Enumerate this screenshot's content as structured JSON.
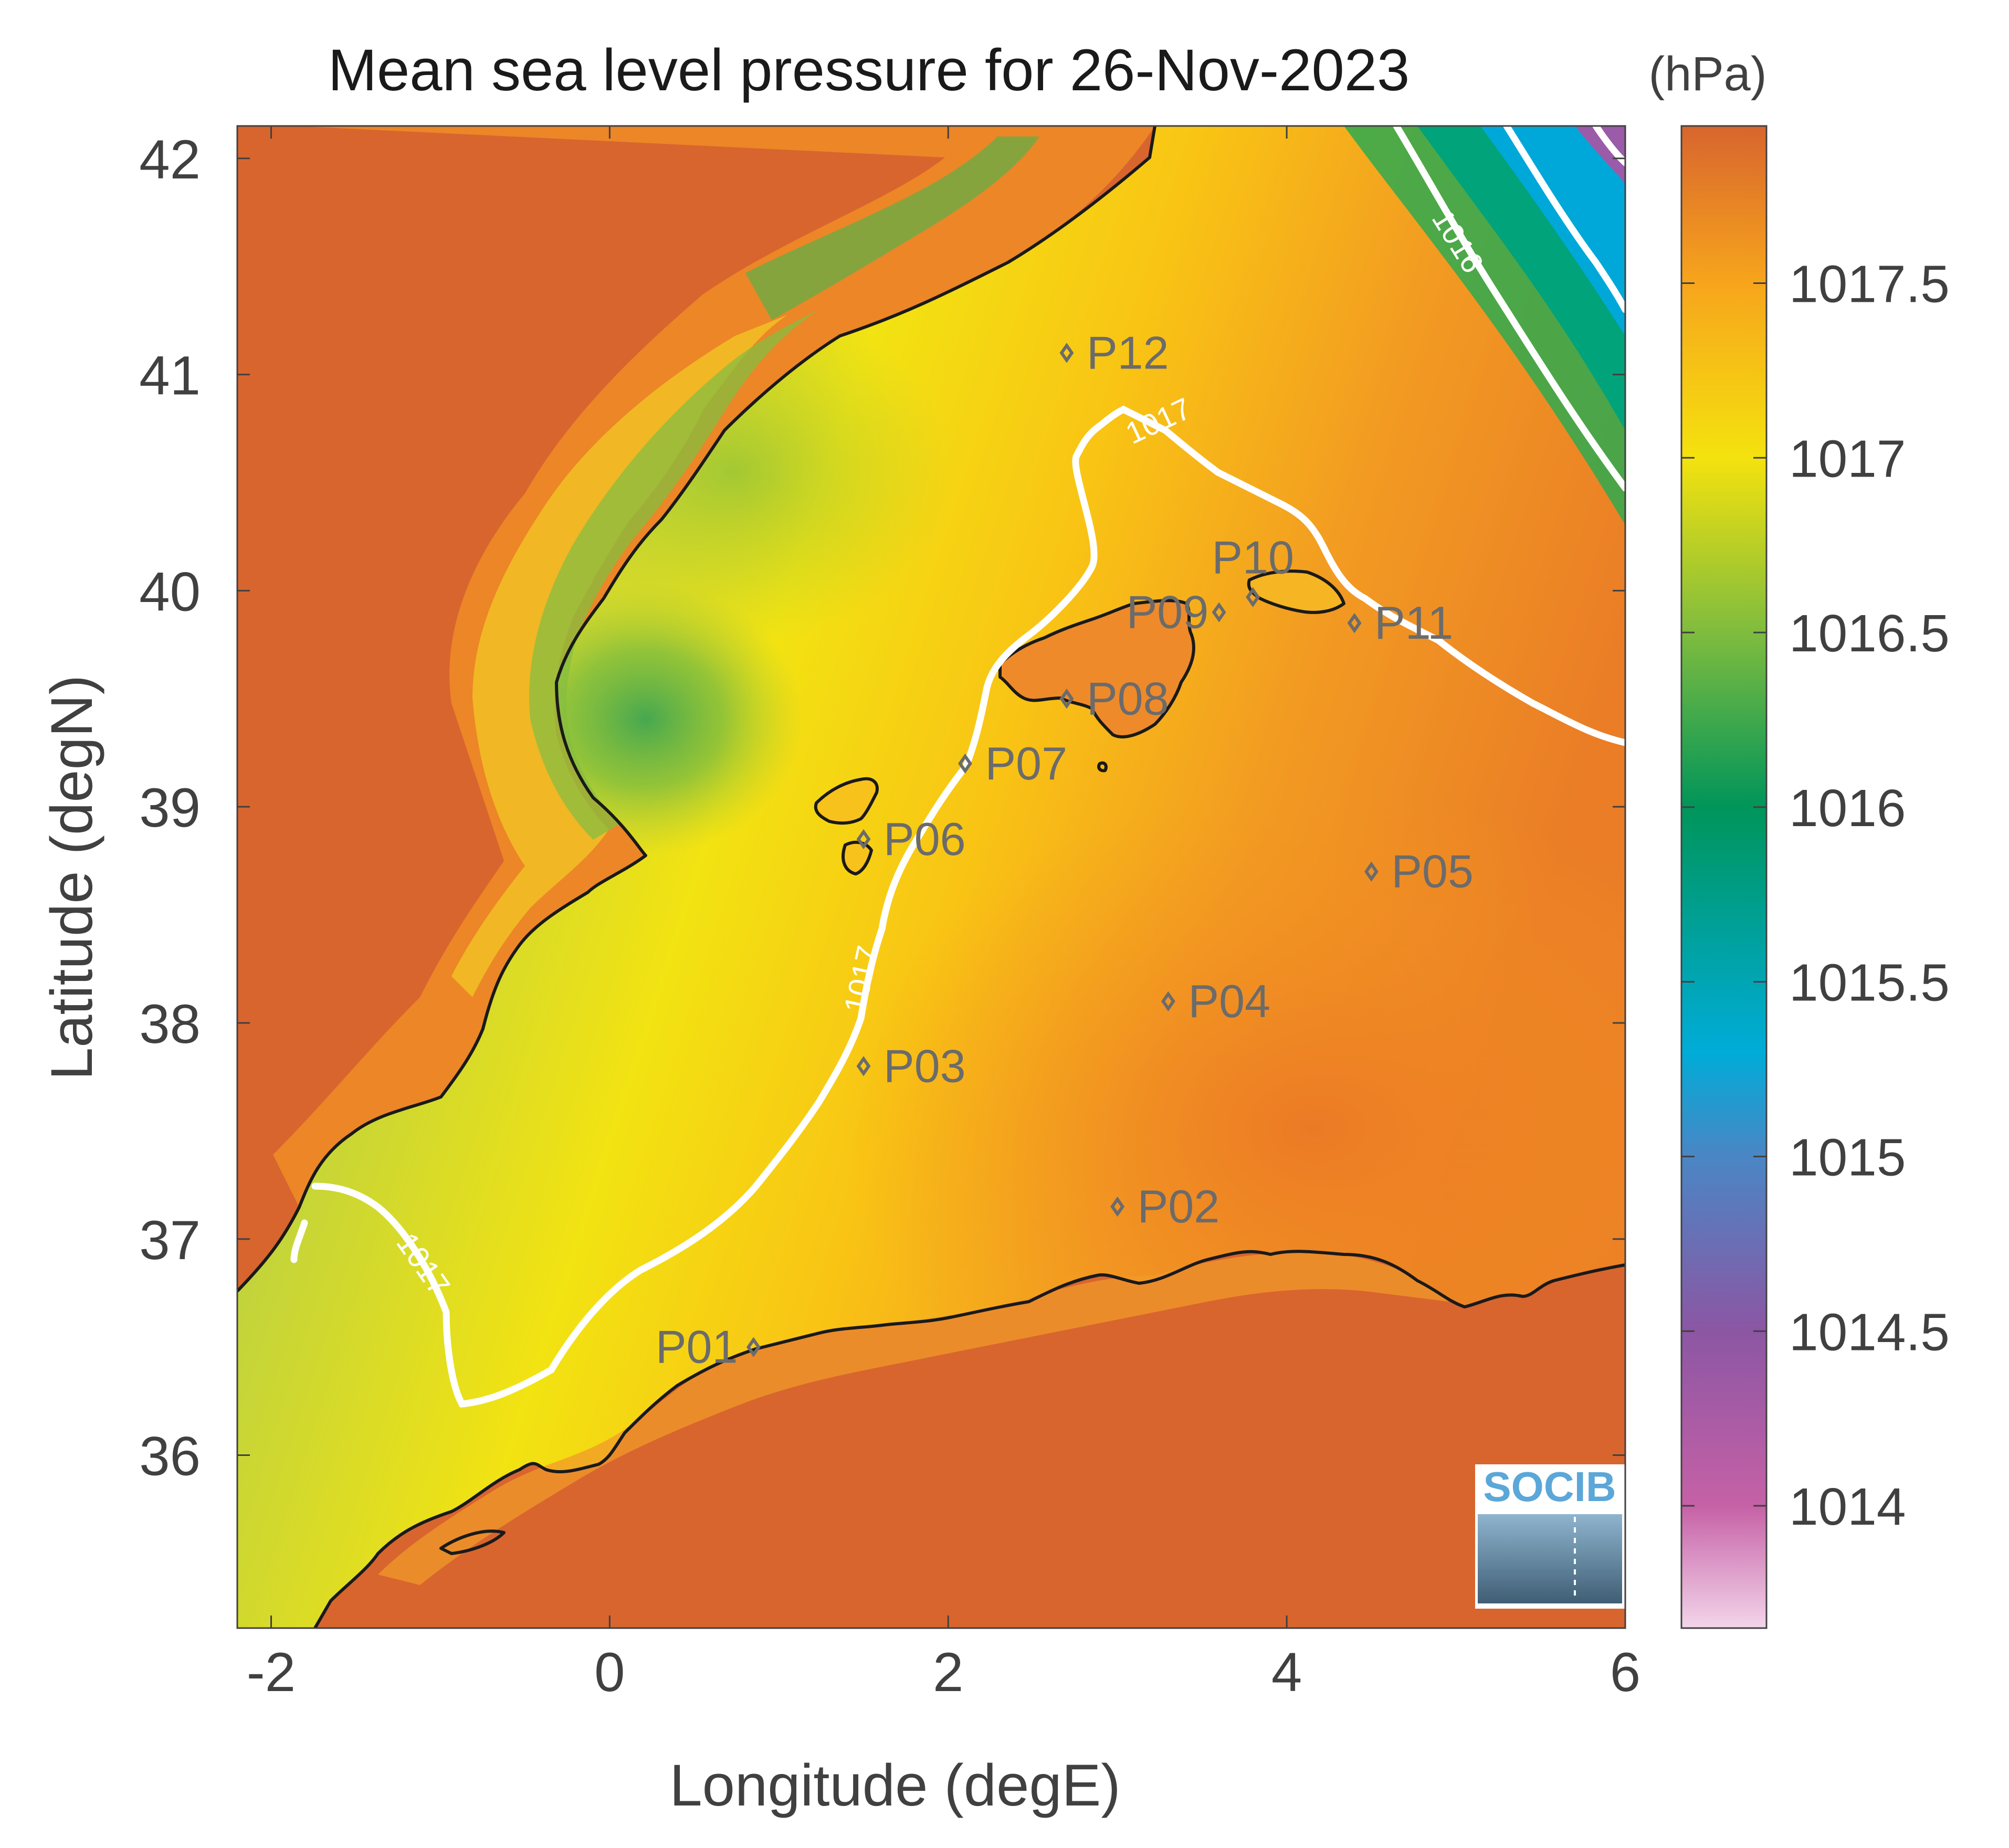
{
  "title": "Mean sea level pressure for 26-Nov-2023",
  "xlabel": "Longitude (degE)",
  "ylabel": "Latitude (degN)",
  "colorbar": {
    "unit_label": "(hPa)",
    "min": 1013.65,
    "max": 1017.95,
    "ticks": [
      "1014",
      "1014.5",
      "1015",
      "1015.5",
      "1016",
      "1016.5",
      "1017",
      "1017.5"
    ],
    "stops": [
      {
        "value": 1013.65,
        "color": "#f3d5ea"
      },
      {
        "value": 1014.0,
        "color": "#c661a6"
      },
      {
        "value": 1014.5,
        "color": "#8c56a3"
      },
      {
        "value": 1015.0,
        "color": "#4a86c5"
      },
      {
        "value": 1015.3,
        "color": "#00acd8"
      },
      {
        "value": 1016.0,
        "color": "#00955a"
      },
      {
        "value": 1016.5,
        "color": "#7fbc3e"
      },
      {
        "value": 1017.0,
        "color": "#f4e20e"
      },
      {
        "value": 1017.5,
        "color": "#f7a51c"
      },
      {
        "value": 1017.95,
        "color": "#d8652e"
      }
    ]
  },
  "chart_data": {
    "type": "heatmap",
    "title": "Mean sea level pressure for 26-Nov-2023",
    "xlabel": "Longitude (degE)",
    "ylabel": "Latitude (degN)",
    "xlim": [
      -2.2,
      6.0
    ],
    "ylim": [
      35.2,
      42.15
    ],
    "xticks": [
      "-2",
      "0",
      "2",
      "4",
      "6"
    ],
    "yticks": [
      "36",
      "37",
      "38",
      "39",
      "40",
      "41",
      "42"
    ],
    "contour_labels": [
      "1016",
      "1017",
      "1017",
      "1017"
    ],
    "points": [
      {
        "name": "P01",
        "lon": 0.85,
        "lat": 36.5
      },
      {
        "name": "P02",
        "lon": 3.0,
        "lat": 37.15
      },
      {
        "name": "P03",
        "lon": 1.5,
        "lat": 37.8
      },
      {
        "name": "P04",
        "lon": 3.3,
        "lat": 38.1
      },
      {
        "name": "P05",
        "lon": 4.5,
        "lat": 38.7
      },
      {
        "name": "P06",
        "lon": 1.5,
        "lat": 38.85
      },
      {
        "name": "P07",
        "lon": 2.1,
        "lat": 39.2
      },
      {
        "name": "P08",
        "lon": 2.7,
        "lat": 39.5
      },
      {
        "name": "P09",
        "lon": 3.6,
        "lat": 39.9
      },
      {
        "name": "P10",
        "lon": 3.8,
        "lat": 39.97
      },
      {
        "name": "P11",
        "lon": 4.4,
        "lat": 39.85
      },
      {
        "name": "P12",
        "lon": 2.7,
        "lat": 41.1
      }
    ]
  },
  "logo": {
    "text": "SOCIB"
  }
}
